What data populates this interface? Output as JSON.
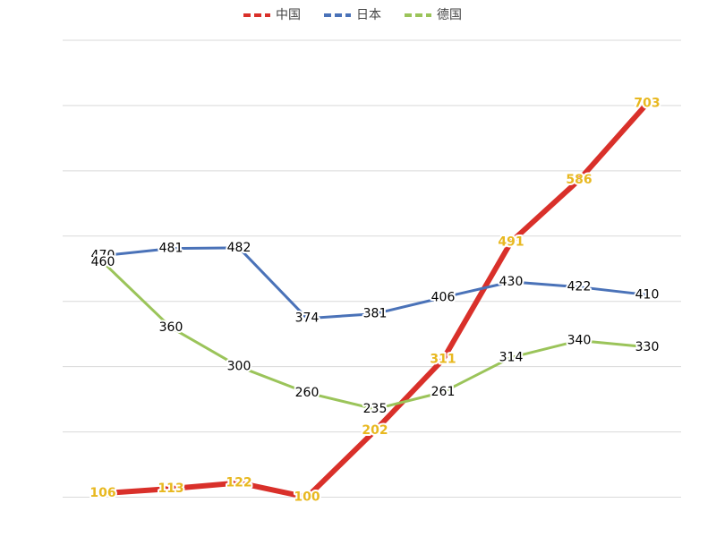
{
  "chart_data": {
    "type": "line",
    "categories": [
      null,
      null,
      null,
      null,
      null,
      null,
      null,
      null,
      null
    ],
    "series": [
      {
        "name": "中国",
        "color": "#d9302a",
        "label_color": "#e8b820",
        "values": [
          106,
          113,
          122,
          100,
          202,
          311,
          491,
          586,
          703
        ]
      },
      {
        "name": "日本",
        "color": "#4a72b8",
        "label_color": "#000000",
        "values": [
          470,
          481,
          482,
          374,
          381,
          406,
          430,
          422,
          410
        ]
      },
      {
        "name": "德国",
        "color": "#9bc45a",
        "label_color": "#000000",
        "values": [
          460,
          360,
          300,
          260,
          235,
          261,
          314,
          340,
          330
        ]
      }
    ],
    "ylim": [
      50,
      800
    ],
    "yticks": [
      100,
      200,
      300,
      400,
      500,
      600,
      700,
      800
    ],
    "grid": true
  }
}
